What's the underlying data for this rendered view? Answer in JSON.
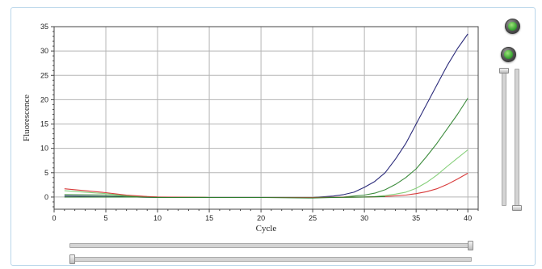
{
  "chart_data": {
    "type": "line",
    "title": "",
    "xlabel": "Cycle",
    "ylabel": "Fluorescence",
    "xlim": [
      0,
      41
    ],
    "ylim": [
      -2.5,
      35
    ],
    "x_ticks": [
      0,
      5,
      10,
      15,
      20,
      25,
      30,
      35,
      40
    ],
    "y_ticks": [
      0,
      5,
      10,
      15,
      20,
      25,
      30,
      35
    ],
    "grid": true,
    "legend": "none",
    "series": [
      {
        "color": "#2b2b7a",
        "x": [
          1,
          5,
          8,
          10,
          15,
          20,
          25,
          27,
          28,
          29,
          30,
          31,
          32,
          33,
          34,
          35,
          36,
          37,
          38,
          39,
          40
        ],
        "y": [
          0.2,
          0.1,
          0.0,
          -0.1,
          -0.1,
          -0.1,
          -0.1,
          0.2,
          0.5,
          1.0,
          2.0,
          3.2,
          5.0,
          7.8,
          11.0,
          15.0,
          19.0,
          23.0,
          27.0,
          30.5,
          33.5
        ]
      },
      {
        "color": "#3d8c3d",
        "x": [
          1,
          5,
          8,
          10,
          15,
          20,
          25,
          28,
          29,
          30,
          31,
          32,
          33,
          34,
          35,
          36,
          37,
          38,
          39,
          40
        ],
        "y": [
          0.5,
          0.4,
          0.1,
          0.0,
          -0.1,
          -0.1,
          -0.1,
          0.0,
          0.2,
          0.4,
          0.8,
          1.5,
          2.6,
          4.0,
          5.8,
          8.3,
          11.0,
          14.0,
          17.0,
          20.3
        ]
      },
      {
        "color": "#86cf7a",
        "x": [
          1,
          3,
          5,
          7,
          9,
          10,
          15,
          20,
          25,
          30,
          31,
          32,
          33,
          34,
          35,
          36,
          37,
          38,
          39,
          40
        ],
        "y": [
          1.3,
          1.0,
          0.7,
          0.3,
          0.1,
          0.0,
          -0.1,
          -0.1,
          -0.1,
          0.0,
          0.1,
          0.3,
          0.6,
          1.0,
          1.8,
          3.0,
          4.5,
          6.3,
          8.0,
          9.7
        ]
      },
      {
        "color": "#d83a3a",
        "x": [
          1,
          3,
          5,
          7,
          9,
          10,
          15,
          20,
          25,
          30,
          32,
          34,
          35,
          36,
          37,
          38,
          39,
          40
        ],
        "y": [
          1.7,
          1.3,
          0.9,
          0.4,
          0.1,
          0.0,
          -0.1,
          -0.1,
          -0.1,
          0.0,
          0.1,
          0.4,
          0.7,
          1.1,
          1.7,
          2.6,
          3.7,
          4.9
        ]
      },
      {
        "color": "#2e7d2e",
        "x": [
          1,
          5,
          8,
          10,
          15,
          20,
          25,
          27,
          30,
          32
        ],
        "y": [
          0.0,
          0.0,
          0.0,
          -0.1,
          -0.1,
          -0.1,
          -0.2,
          -0.1,
          0.0,
          0.1
        ]
      }
    ]
  },
  "controls": {
    "zoom_reset_icon": "reset-zoom-icon",
    "zoom_icon": "zoom-icon",
    "accent": "#b9d6ea"
  }
}
